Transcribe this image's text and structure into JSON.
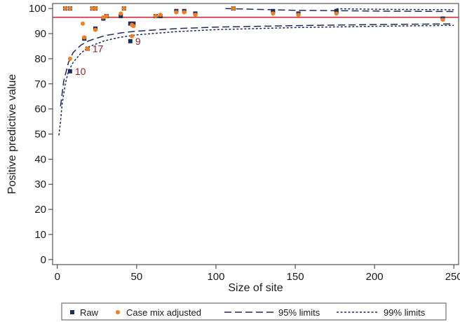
{
  "chart_data": {
    "type": "scatter",
    "title": "",
    "xlabel": "Size of site",
    "ylabel": "Positive predictive value",
    "xlim": [
      -3,
      253
    ],
    "ylim": [
      -2,
      102
    ],
    "x_ticks": [
      0,
      50,
      100,
      150,
      200,
      250
    ],
    "y_ticks": [
      0,
      10,
      20,
      30,
      40,
      50,
      60,
      70,
      80,
      90,
      100
    ],
    "reference_line": {
      "y": 96.5,
      "color": "#cc2a36"
    },
    "series": [
      {
        "name": "Raw",
        "marker": "square",
        "color": "#1f2b5c",
        "points": [
          [
            5,
            100
          ],
          [
            8,
            100
          ],
          [
            8,
            75
          ],
          [
            17,
            88
          ],
          [
            19,
            84
          ],
          [
            22,
            100
          ],
          [
            24,
            100
          ],
          [
            24,
            92
          ],
          [
            29,
            96
          ],
          [
            31,
            97
          ],
          [
            40,
            97
          ],
          [
            42,
            100
          ],
          [
            46,
            87
          ],
          [
            46,
            94
          ],
          [
            48,
            94
          ],
          [
            62,
            97
          ],
          [
            65,
            97
          ],
          [
            75,
            99
          ],
          [
            80,
            99
          ],
          [
            87,
            98
          ],
          [
            111,
            100
          ],
          [
            136,
            99
          ],
          [
            152,
            98
          ],
          [
            176,
            99
          ],
          [
            243,
            96
          ]
        ]
      },
      {
        "name": "Case mix adjusted",
        "marker": "circle",
        "color": "#f07f21",
        "points": [
          [
            5,
            100
          ],
          [
            8,
            100
          ],
          [
            8,
            80
          ],
          [
            16,
            94
          ],
          [
            17,
            88.5
          ],
          [
            19,
            84
          ],
          [
            22,
            100
          ],
          [
            24,
            100
          ],
          [
            24,
            91.5
          ],
          [
            29,
            96.5
          ],
          [
            31,
            97
          ],
          [
            40,
            98
          ],
          [
            42,
            100
          ],
          [
            47,
            93.5
          ],
          [
            47,
            89
          ],
          [
            48,
            93
          ],
          [
            62,
            97
          ],
          [
            65,
            97.5
          ],
          [
            75,
            98.5
          ],
          [
            80,
            98.5
          ],
          [
            87,
            97.5
          ],
          [
            111,
            100
          ],
          [
            136,
            98
          ],
          [
            152,
            97.5
          ],
          [
            176,
            98
          ],
          [
            243,
            95.5
          ]
        ]
      }
    ],
    "limit_lines": [
      {
        "name": "95% limits",
        "dash": "long",
        "color": "#1f2b5c",
        "lower": [
          [
            2,
            61
          ],
          [
            4,
            71
          ],
          [
            7,
            78.5
          ],
          [
            10,
            82.5
          ],
          [
            15,
            85.5
          ],
          [
            20,
            87.2
          ],
          [
            30,
            89.2
          ],
          [
            40,
            90.3
          ],
          [
            50,
            91
          ],
          [
            75,
            92
          ],
          [
            100,
            92.6
          ],
          [
            150,
            93.2
          ],
          [
            200,
            93.6
          ],
          [
            250,
            93.9
          ]
        ],
        "upper": [
          [
            106,
            100
          ],
          [
            150,
            99.3
          ],
          [
            200,
            99
          ],
          [
            250,
            98.8
          ]
        ]
      },
      {
        "name": "99% limits",
        "dash": "short",
        "color": "#1f2b5c",
        "lower": [
          [
            1,
            49.5
          ],
          [
            2,
            55
          ],
          [
            3,
            62
          ],
          [
            5,
            70
          ],
          [
            7,
            75
          ],
          [
            10,
            78.6
          ],
          [
            15,
            82.3
          ],
          [
            20,
            84.8
          ],
          [
            30,
            87.2
          ],
          [
            40,
            88.6
          ],
          [
            50,
            89.5
          ],
          [
            75,
            90.8
          ],
          [
            100,
            91.6
          ],
          [
            150,
            92.4
          ],
          [
            200,
            92.9
          ],
          [
            250,
            93.3
          ]
        ],
        "upper": [
          [
            176,
            99.9
          ],
          [
            200,
            99.7
          ],
          [
            250,
            99.5
          ]
        ]
      }
    ],
    "annotations": [
      {
        "text": "10",
        "x": 8,
        "y": 75,
        "color": "#8b1e1e"
      },
      {
        "text": "17",
        "x": 19,
        "y": 84,
        "color": "#8b1e1e"
      },
      {
        "text": "9",
        "x": 46,
        "y": 87,
        "color": "#8b1e1e"
      }
    ],
    "legend": {
      "position": "bottom",
      "entries": [
        "Raw",
        "Case mix adjusted",
        "95% limits",
        "99% limits"
      ]
    },
    "grid": false
  }
}
